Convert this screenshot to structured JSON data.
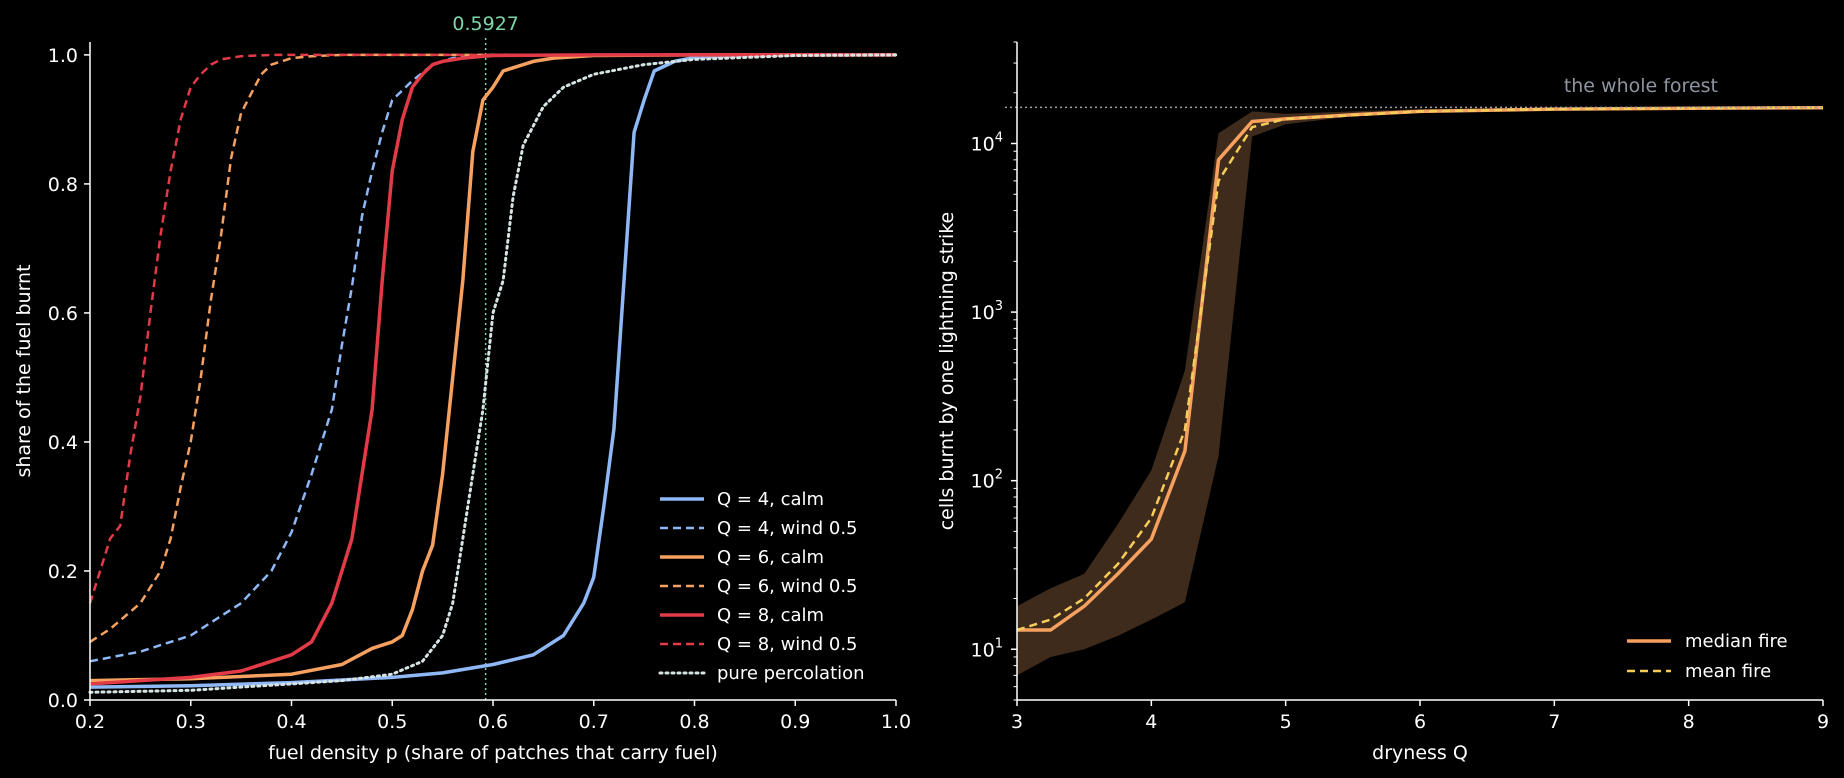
{
  "colors": {
    "background": "#000000",
    "axis": "#ffffff",
    "q4": "#8fb8f7",
    "q6": "#f6a15f",
    "q8": "#e23b47",
    "percolation": "#d6e4e4",
    "threshold_line": "#7fd6a8",
    "threshold_label": "#7fd6a8",
    "band": "#4a3220",
    "median": "#f6a15f",
    "mean": "#f7cd59",
    "forest_line": "#a0a0a0",
    "forest_label": "#8d95a0"
  },
  "chart_data": [
    {
      "type": "line",
      "xlabel": "fuel density p (share of patches that carry fuel)",
      "ylabel": "share of the fuel burnt",
      "xlim": [
        0.2,
        1.0
      ],
      "ylim": [
        0.0,
        1.02
      ],
      "xticks": [
        0.2,
        0.3,
        0.4,
        0.5,
        0.6,
        0.7,
        0.8,
        0.9,
        1.0
      ],
      "xtick_labels": [
        "0.2",
        "0.3",
        "0.4",
        "0.5",
        "0.6",
        "0.7",
        "0.8",
        "0.9",
        "1.0"
      ],
      "yticks": [
        0.0,
        0.2,
        0.4,
        0.6,
        0.8,
        1.0
      ],
      "ytick_labels": [
        "0.0",
        "0.2",
        "0.4",
        "0.6",
        "0.8",
        "1.0"
      ],
      "grid": false,
      "legend_position": "bottom-right",
      "threshold": {
        "x": 0.5927,
        "label": "0.5927"
      },
      "series": [
        {
          "name": "Q = 4, calm",
          "style": "solid",
          "color": "#8fb8f7",
          "x": [
            0.2,
            0.3,
            0.4,
            0.5,
            0.55,
            0.6,
            0.64,
            0.67,
            0.69,
            0.7,
            0.71,
            0.72,
            0.73,
            0.74,
            0.75,
            0.76,
            0.78,
            0.8,
            0.85,
            0.9,
            1.0
          ],
          "y": [
            0.02,
            0.022,
            0.027,
            0.035,
            0.042,
            0.055,
            0.07,
            0.1,
            0.15,
            0.19,
            0.3,
            0.42,
            0.65,
            0.88,
            0.93,
            0.975,
            0.99,
            0.996,
            0.999,
            1.0,
            1.0
          ]
        },
        {
          "name": "Q = 4, wind 0.5",
          "style": "dashed",
          "color": "#8fb8f7",
          "x": [
            0.2,
            0.25,
            0.3,
            0.35,
            0.38,
            0.4,
            0.42,
            0.44,
            0.45,
            0.46,
            0.47,
            0.48,
            0.49,
            0.5,
            0.52,
            0.54,
            0.56,
            0.58,
            0.6,
            0.7,
            1.0
          ],
          "y": [
            0.06,
            0.075,
            0.1,
            0.15,
            0.2,
            0.26,
            0.35,
            0.45,
            0.55,
            0.64,
            0.75,
            0.82,
            0.88,
            0.93,
            0.96,
            0.985,
            0.995,
            0.999,
            1.0,
            1.0,
            1.0
          ]
        },
        {
          "name": "Q = 6, calm",
          "style": "solid",
          "color": "#f6a15f",
          "x": [
            0.2,
            0.3,
            0.4,
            0.45,
            0.48,
            0.5,
            0.51,
            0.52,
            0.53,
            0.54,
            0.55,
            0.56,
            0.57,
            0.58,
            0.59,
            0.6,
            0.61,
            0.62,
            0.64,
            0.66,
            0.7,
            0.8,
            1.0
          ],
          "y": [
            0.03,
            0.033,
            0.04,
            0.055,
            0.08,
            0.09,
            0.1,
            0.14,
            0.2,
            0.24,
            0.35,
            0.5,
            0.65,
            0.85,
            0.93,
            0.95,
            0.975,
            0.98,
            0.99,
            0.995,
            0.999,
            1.0,
            1.0
          ]
        },
        {
          "name": "Q = 6, wind 0.5",
          "style": "dashed",
          "color": "#f6a15f",
          "x": [
            0.2,
            0.22,
            0.25,
            0.27,
            0.28,
            0.29,
            0.3,
            0.31,
            0.32,
            0.33,
            0.34,
            0.35,
            0.36,
            0.37,
            0.38,
            0.39,
            0.4,
            0.42,
            0.45,
            0.5,
            1.0
          ],
          "y": [
            0.09,
            0.11,
            0.15,
            0.2,
            0.25,
            0.33,
            0.4,
            0.5,
            0.62,
            0.72,
            0.84,
            0.91,
            0.94,
            0.97,
            0.985,
            0.99,
            0.995,
            0.998,
            1.0,
            1.0,
            1.0
          ]
        },
        {
          "name": "Q = 8, calm",
          "style": "solid",
          "color": "#e23b47",
          "x": [
            0.2,
            0.3,
            0.35,
            0.38,
            0.4,
            0.42,
            0.43,
            0.44,
            0.45,
            0.46,
            0.47,
            0.48,
            0.49,
            0.5,
            0.51,
            0.52,
            0.53,
            0.54,
            0.55,
            0.57,
            0.6,
            0.7,
            1.0
          ],
          "y": [
            0.025,
            0.035,
            0.045,
            0.06,
            0.07,
            0.09,
            0.12,
            0.15,
            0.2,
            0.25,
            0.35,
            0.45,
            0.65,
            0.82,
            0.9,
            0.95,
            0.97,
            0.985,
            0.99,
            0.995,
            0.999,
            1.0,
            1.0
          ]
        },
        {
          "name": "Q = 8, wind 0.5",
          "style": "dashed",
          "color": "#e23b47",
          "x": [
            0.2,
            0.21,
            0.22,
            0.23,
            0.24,
            0.25,
            0.26,
            0.27,
            0.28,
            0.29,
            0.3,
            0.31,
            0.32,
            0.33,
            0.35,
            0.38,
            0.4,
            0.45,
            1.0
          ],
          "y": [
            0.15,
            0.2,
            0.25,
            0.27,
            0.38,
            0.47,
            0.6,
            0.72,
            0.82,
            0.9,
            0.95,
            0.97,
            0.985,
            0.993,
            0.998,
            1.0,
            1.0,
            1.0,
            1.0
          ]
        },
        {
          "name": "pure percolation",
          "style": "dotted",
          "color": "#d6e4e4",
          "x": [
            0.2,
            0.3,
            0.4,
            0.45,
            0.5,
            0.53,
            0.55,
            0.56,
            0.57,
            0.58,
            0.59,
            0.6,
            0.61,
            0.62,
            0.63,
            0.65,
            0.67,
            0.7,
            0.75,
            0.8,
            0.9,
            1.0
          ],
          "y": [
            0.012,
            0.015,
            0.025,
            0.03,
            0.04,
            0.06,
            0.1,
            0.15,
            0.25,
            0.35,
            0.45,
            0.6,
            0.65,
            0.78,
            0.86,
            0.92,
            0.95,
            0.97,
            0.985,
            0.993,
            0.999,
            1.0
          ]
        }
      ]
    },
    {
      "type": "line",
      "xlabel": "dryness Q",
      "ylabel": "cells burnt by one lightning strike",
      "xlim": [
        3,
        9
      ],
      "ylim": [
        5,
        40000
      ],
      "yscale": "log",
      "xticks": [
        3,
        4,
        5,
        6,
        7,
        8,
        9
      ],
      "xtick_labels": [
        "3",
        "4",
        "5",
        "6",
        "7",
        "8",
        "9"
      ],
      "yticks": [
        10,
        100,
        1000,
        10000
      ],
      "ytick_labels": [
        [
          "10",
          "1"
        ],
        [
          "10",
          "2"
        ],
        [
          "10",
          "3"
        ],
        [
          "10",
          "4"
        ]
      ],
      "grid": false,
      "legend_position": "bottom-right",
      "reference_line": {
        "y": 16384,
        "label": "the whole forest"
      },
      "band": {
        "x": [
          3,
          3.25,
          3.5,
          3.75,
          4,
          4.25,
          4.5,
          4.75,
          5,
          5.5,
          6,
          7,
          8,
          9
        ],
        "lower": [
          7,
          9,
          10,
          12,
          15,
          19,
          140,
          11000,
          13000,
          14500,
          15500,
          16200,
          16300,
          16384
        ],
        "upper": [
          18,
          23,
          28,
          55,
          115,
          450,
          11500,
          15500,
          15000,
          15500,
          16000,
          16300,
          16384,
          16384
        ]
      },
      "series": [
        {
          "name": "median fire",
          "style": "solid",
          "color": "#f6a15f",
          "x": [
            3,
            3.25,
            3.5,
            3.75,
            4,
            4.25,
            4.5,
            4.75,
            5,
            5.5,
            6,
            7,
            8,
            9
          ],
          "y": [
            13,
            13,
            18,
            28,
            45,
            150,
            8000,
            13500,
            14000,
            14800,
            15500,
            16000,
            16200,
            16300
          ]
        },
        {
          "name": "mean fire",
          "style": "dashed",
          "color": "#f7cd59",
          "x": [
            3,
            3.25,
            3.5,
            3.75,
            4,
            4.25,
            4.5,
            4.75,
            5,
            5.5,
            6,
            7,
            8,
            9
          ],
          "y": [
            13,
            15,
            20,
            32,
            60,
            200,
            6000,
            12500,
            14000,
            14700,
            15500,
            16000,
            16200,
            16300
          ]
        }
      ]
    }
  ]
}
